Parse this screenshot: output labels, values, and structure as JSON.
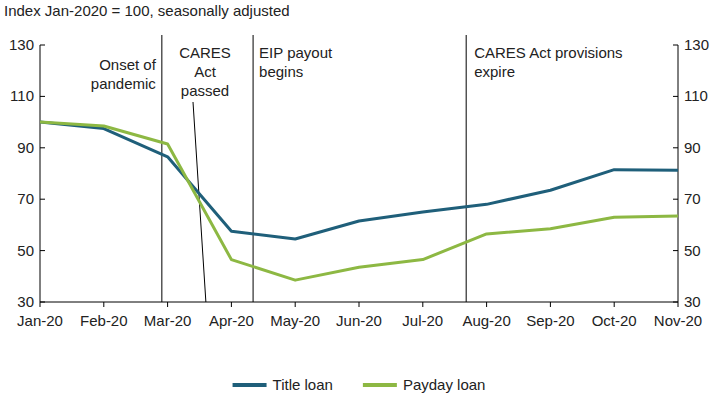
{
  "chart_data": {
    "type": "line",
    "subtitle": "Index Jan-2020 = 100, seasonally adjusted",
    "categories": [
      "Jan-20",
      "Feb-20",
      "Mar-20",
      "Apr-20",
      "May-20",
      "Jun-20",
      "Jul-20",
      "Aug-20",
      "Sep-20",
      "Oct-20",
      "Nov-20"
    ],
    "series": [
      {
        "name": "Title loan",
        "color": "#1f5f7a",
        "values": [
          100,
          97.5,
          86.5,
          57.5,
          54.5,
          61.5,
          65,
          68,
          73.5,
          81.5,
          81.3
        ]
      },
      {
        "name": "Payday loan",
        "color": "#8db843",
        "values": [
          100,
          98.5,
          91.5,
          46.5,
          38.5,
          43.5,
          46.5,
          56.5,
          58.5,
          63,
          63.5
        ]
      }
    ],
    "ylim": [
      30,
      130
    ],
    "yticks": [
      30,
      50,
      70,
      90,
      110,
      130
    ],
    "y2lim": [
      30,
      130
    ],
    "y2ticks": [
      30,
      50,
      70,
      90,
      110,
      130
    ],
    "grid": false,
    "legend": "bottom",
    "annotations": [
      {
        "text": [
          "Onset of",
          "pandemic"
        ],
        "x": 1.91
      },
      {
        "text": [
          "CARES",
          "Act",
          "passed"
        ],
        "x": 2.6
      },
      {
        "text": [
          "EIP payout",
          "begins"
        ],
        "x": 3.34
      },
      {
        "text": [
          "CARES Act provisions",
          "expire"
        ],
        "x": 6.68
      }
    ]
  }
}
